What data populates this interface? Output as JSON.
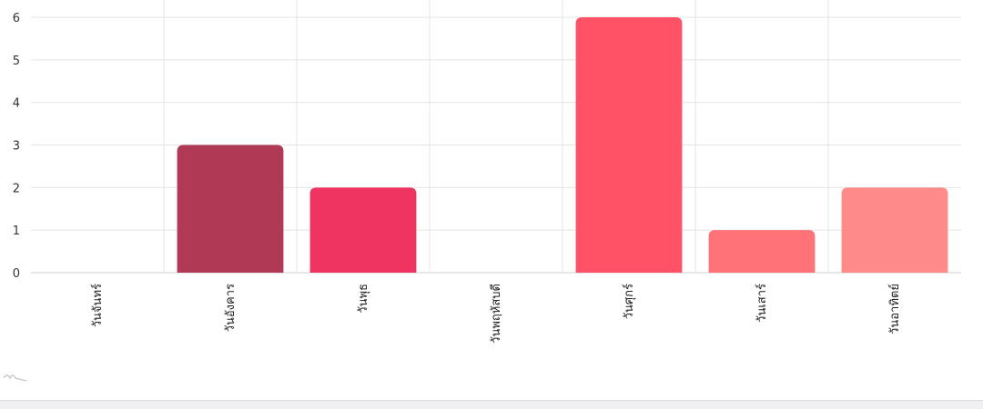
{
  "chart_data": {
    "type": "bar",
    "categories": [
      "วันจันทร์",
      "วันอังคาร",
      "วันพุธ",
      "วันพฤหัสบดี",
      "วันศุกร์",
      "วันเสาร์",
      "วันอาทิตย์"
    ],
    "values": [
      0,
      3,
      2,
      0,
      6,
      1,
      2
    ],
    "colors": [
      "#b03a55",
      "#b03a55",
      "#ef3461",
      "#ef3461",
      "#ff5266",
      "#ff7378",
      "#ff8a8a"
    ],
    "yticks": [
      0,
      1,
      2,
      3,
      4,
      5,
      6
    ],
    "ylim": [
      0,
      6
    ],
    "grid": true,
    "legend": "none"
  }
}
